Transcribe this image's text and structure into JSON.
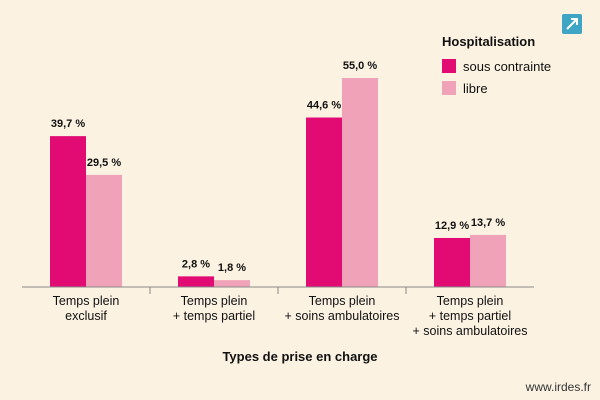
{
  "chart_data": {
    "type": "bar",
    "categories": [
      "Temps plein\nexclusif",
      "Temps plein\n+ temps partiel",
      "Temps plein\n+ soins ambulatoires",
      "Temps plein\n+ temps partiel\n+ soins ambulatoires"
    ],
    "series": [
      {
        "name": "sous contrainte",
        "color": "#e10b73",
        "values": [
          39.7,
          2.8,
          44.6,
          12.9
        ],
        "labels": [
          "39,7 %",
          "2,8 %",
          "44,6 %",
          "12,9 %"
        ]
      },
      {
        "name": "libre",
        "color": "#f0a2b8",
        "values": [
          29.5,
          1.8,
          55.0,
          13.7
        ],
        "labels": [
          "29,5 %",
          "1,8 %",
          "55,0 %",
          "13,7 %"
        ]
      }
    ],
    "title": "",
    "xlabel": "Types de prise en charge",
    "ylabel": "",
    "ylim": [
      0,
      55
    ],
    "grid": false,
    "legend_title": "Hospitalisation",
    "legend_position": "top-right"
  },
  "footer": {
    "source": "www.irdes.fr"
  },
  "icons": {
    "corner": "expand-arrow-icon"
  }
}
